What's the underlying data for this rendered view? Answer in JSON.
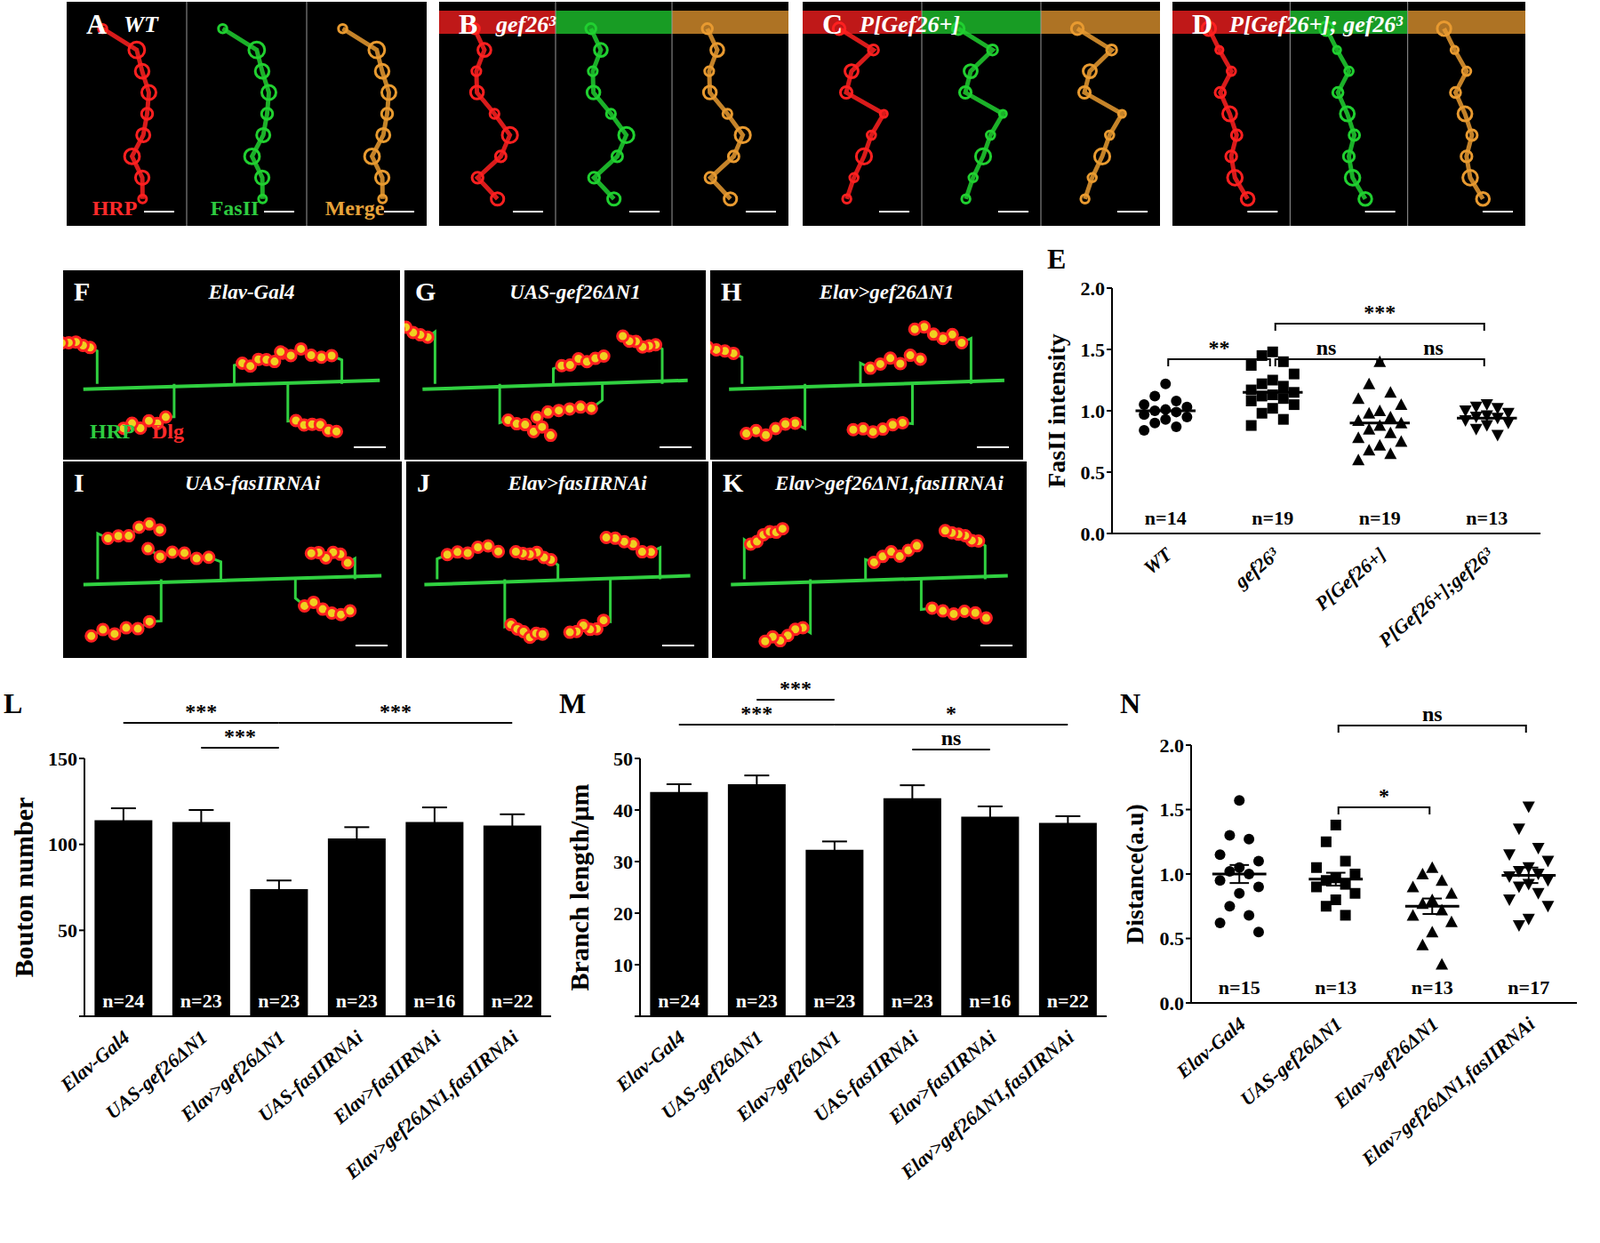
{
  "image_panels": [
    {
      "panel": "A",
      "title": "WT",
      "channels": [
        {
          "label": "HRP",
          "color": "#ff2a2a"
        },
        {
          "label": "FasII",
          "color": "#2ecc40"
        },
        {
          "label": "Merge",
          "color": "#e8a33a"
        }
      ]
    },
    {
      "panel": "B",
      "title": "gef26³"
    },
    {
      "panel": "C",
      "title": "P[Gef26+]"
    },
    {
      "panel": "D",
      "title": "P[Gef26+]; gef26³"
    },
    {
      "panel": "F",
      "title": "Elav-Gal4",
      "channels": [
        {
          "label": "HRP",
          "color": "#2ecc40"
        },
        {
          "label": "Dlg",
          "color": "#ff2a2a"
        }
      ]
    },
    {
      "panel": "G",
      "title": "UAS-gef26ΔN1"
    },
    {
      "panel": "H",
      "title": "Elav>gef26ΔN1"
    },
    {
      "panel": "I",
      "title": "UAS-fasIIRNAi"
    },
    {
      "panel": "J",
      "title": "Elav>fasIIRNAi"
    },
    {
      "panel": "K",
      "title": "Elav>gef26ΔN1,fasIIRNAi"
    }
  ],
  "chart_data": [
    {
      "panel": "E",
      "type": "scatter",
      "y_label": "FasII intensity",
      "color": "#000000",
      "categories": [
        "WT",
        "gef26³",
        "P[Gef26+]",
        "P[Gef26+];gef26³"
      ],
      "ylim": [
        0,
        2
      ],
      "yticks": [
        {
          "value": 0,
          "label": "0.0"
        },
        0.5,
        {
          "value": 1,
          "label": "1.0"
        },
        1.5,
        {
          "value": 2,
          "label": "2.0"
        }
      ],
      "groups": [
        {
          "marker": "circle",
          "mean": 1.0,
          "values": [
            1.22,
            1.12,
            1.08,
            1.05,
            1.03,
            1.01,
            1.0,
            0.99,
            0.97,
            0.95,
            0.93,
            0.9,
            0.87,
            0.84
          ]
        },
        {
          "marker": "square",
          "mean": 1.15,
          "values": [
            1.48,
            1.45,
            1.4,
            1.37,
            1.3,
            1.25,
            1.22,
            1.2,
            1.17,
            1.15,
            1.13,
            1.12,
            1.1,
            1.08,
            1.05,
            1.02,
            0.98,
            0.93,
            0.88
          ]
        },
        {
          "marker": "triangle",
          "mean": 0.9,
          "values": [
            1.4,
            1.22,
            1.15,
            1.1,
            1.05,
            1.0,
            0.98,
            0.95,
            0.92,
            0.9,
            0.88,
            0.85,
            0.82,
            0.78,
            0.75,
            0.72,
            0.68,
            0.65,
            0.6
          ]
        },
        {
          "marker": "triangle-down",
          "mean": 0.94,
          "values": [
            1.05,
            1.03,
            1.02,
            1.0,
            0.98,
            0.96,
            0.95,
            0.94,
            0.92,
            0.9,
            0.88,
            0.85,
            0.8
          ]
        }
      ],
      "n_labels": [
        "n=14",
        "n=19",
        "n=19",
        "n=13"
      ],
      "significance": [
        {
          "from": "WT",
          "to": "gef26³",
          "label": "**"
        },
        {
          "from": "gef26³",
          "to": "P[Gef26+]",
          "label": "ns"
        },
        {
          "from": "P[Gef26+]",
          "to": "P[Gef26+];gef26³",
          "label": "ns"
        },
        {
          "from": "gef26³",
          "to": "P[Gef26+];gef26³",
          "label": "***"
        }
      ]
    },
    {
      "panel": "L",
      "type": "bar",
      "y_label": "Bouton number",
      "color": "#000000",
      "categories": [
        "Elav-Gal4",
        "UAS-gef26ΔN1",
        "Elav>gef26ΔN1",
        "UAS-fasIIRNAi",
        "Elav>fasIIRNAi",
        "Elav>gef26ΔN1,fasIIRNAi"
      ],
      "values": [
        114,
        113,
        74,
        103.5,
        113,
        111
      ],
      "errors": [
        7,
        7,
        5,
        6.5,
        8.5,
        6.5
      ],
      "ylim": [
        0,
        150
      ],
      "yticks": [
        0,
        50,
        100,
        150
      ],
      "n_labels": [
        "n=24",
        "n=23",
        "n=23",
        "n=23",
        "n=16",
        "n=22"
      ],
      "significance": [
        {
          "from": "Elav-Gal4",
          "to": "Elav>gef26ΔN1",
          "label": "***"
        },
        {
          "from": "UAS-gef26ΔN1",
          "to": "Elav>gef26ΔN1",
          "label": "***"
        },
        {
          "from": "Elav>gef26ΔN1",
          "to": "Elav>gef26ΔN1,fasIIRNAi",
          "label": "***"
        }
      ]
    },
    {
      "panel": "M",
      "type": "bar",
      "y_label": "Branch length/μm",
      "color": "#000000",
      "categories": [
        "Elav-Gal4",
        "UAS-gef26ΔN1",
        "Elav>gef26ΔN1",
        "UAS-fasIIRNAi",
        "Elav>fasIIRNAi",
        "Elav>gef26ΔN1,fasIIRNAi"
      ],
      "values": [
        43.5,
        45,
        32.3,
        42.3,
        38.7,
        37.5
      ],
      "errors": [
        1.5,
        1.7,
        1.6,
        2.5,
        2.0,
        1.3
      ],
      "ylim": [
        0,
        50
      ],
      "yticks": [
        0,
        10,
        20,
        30,
        40,
        50
      ],
      "n_labels": [
        "n=24",
        "n=23",
        "n=23",
        "n=23",
        "n=16",
        "n=22"
      ],
      "significance": [
        {
          "from": "Elav-Gal4",
          "to": "Elav>gef26ΔN1",
          "label": "***"
        },
        {
          "from": "UAS-gef26ΔN1",
          "to": "Elav>gef26ΔN1",
          "label": "***"
        },
        {
          "from": "Elav>gef26ΔN1",
          "to": "Elav>gef26ΔN1,fasIIRNAi",
          "label": "*"
        },
        {
          "from": "UAS-fasIIRNAi",
          "to": "Elav>fasIIRNAi",
          "label": "ns"
        }
      ]
    },
    {
      "panel": "N",
      "type": "scatter",
      "y_label": "Distance(a.u)",
      "color": "#000000",
      "categories": [
        "Elav-Gal4",
        "UAS-gef26ΔN1",
        "Elav>gef26ΔN1",
        "Elav>gef26ΔN1,fasIIRNAi"
      ],
      "ylim": [
        0,
        2
      ],
      "yticks": [
        {
          "value": 0,
          "label": "0.0"
        },
        0.5,
        {
          "value": 1,
          "label": "1.0"
        },
        1.5,
        {
          "value": 2,
          "label": "2.0"
        }
      ],
      "groups": [
        {
          "marker": "circle",
          "mean": 1.0,
          "sem": 0.07,
          "values": [
            1.57,
            1.3,
            1.27,
            1.15,
            1.1,
            1.05,
            1.02,
            1.0,
            0.95,
            0.9,
            0.85,
            0.75,
            0.68,
            0.62,
            0.55
          ]
        },
        {
          "marker": "square",
          "mean": 0.96,
          "sem": 0.05,
          "values": [
            1.38,
            1.25,
            1.1,
            1.05,
            1.0,
            0.97,
            0.95,
            0.92,
            0.9,
            0.85,
            0.8,
            0.75,
            0.68
          ]
        },
        {
          "marker": "triangle",
          "mean": 0.75,
          "sem": 0.06,
          "values": [
            1.05,
            1.0,
            0.95,
            0.9,
            0.85,
            0.8,
            0.77,
            0.72,
            0.68,
            0.63,
            0.55,
            0.45,
            0.3
          ]
        },
        {
          "marker": "triangle-down",
          "mean": 0.99,
          "sem": 0.06,
          "values": [
            1.52,
            1.35,
            1.2,
            1.15,
            1.1,
            1.05,
            1.02,
            1.0,
            0.98,
            0.95,
            0.92,
            0.9,
            0.85,
            0.8,
            0.75,
            0.65,
            0.6
          ]
        }
      ],
      "n_labels": [
        "n=15",
        "n=13",
        "n=13",
        "n=17"
      ],
      "significance": [
        {
          "from": "UAS-gef26ΔN1",
          "to": "Elav>gef26ΔN1",
          "label": "*"
        },
        {
          "from": "UAS-gef26ΔN1",
          "to": "Elav>gef26ΔN1,fasIIRNAi",
          "label": "ns"
        }
      ]
    }
  ]
}
